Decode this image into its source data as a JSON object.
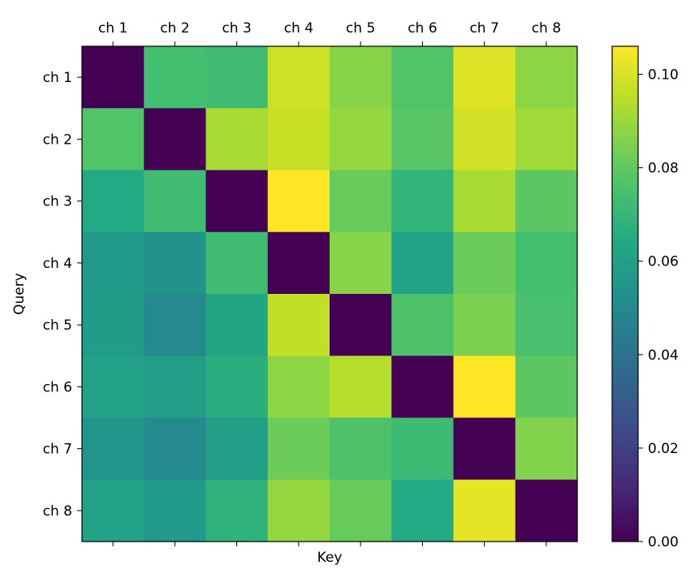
{
  "chart_data": {
    "type": "heatmap",
    "title": "",
    "xlabel": "Key",
    "ylabel": "Query",
    "x_tick_labels": [
      "ch 1",
      "ch 2",
      "ch 3",
      "ch 4",
      "ch 5",
      "ch 6",
      "ch 7",
      "ch 8"
    ],
    "y_tick_labels": [
      "ch 1",
      "ch 2",
      "ch 3",
      "ch 4",
      "ch 5",
      "ch 6",
      "ch 7",
      "ch 8"
    ],
    "colormap": "viridis",
    "vmin": 0.0,
    "vmax": 0.106,
    "colorbar_ticks": [
      0.0,
      0.02,
      0.04,
      0.06,
      0.08,
      0.1
    ],
    "colorbar_tick_labels": [
      "0.00",
      "0.02",
      "0.04",
      "0.06",
      "0.08",
      "0.10"
    ],
    "values": [
      [
        0.0,
        0.074,
        0.073,
        0.098,
        0.087,
        0.077,
        0.101,
        0.088
      ],
      [
        0.077,
        0.0,
        0.092,
        0.097,
        0.089,
        0.078,
        0.099,
        0.091
      ],
      [
        0.064,
        0.073,
        0.0,
        0.106,
        0.081,
        0.069,
        0.092,
        0.079
      ],
      [
        0.057,
        0.054,
        0.073,
        0.0,
        0.087,
        0.061,
        0.082,
        0.074
      ],
      [
        0.058,
        0.05,
        0.062,
        0.096,
        0.0,
        0.076,
        0.085,
        0.075
      ],
      [
        0.061,
        0.059,
        0.066,
        0.088,
        0.094,
        0.0,
        0.106,
        0.079
      ],
      [
        0.055,
        0.05,
        0.06,
        0.082,
        0.076,
        0.072,
        0.0,
        0.086
      ],
      [
        0.061,
        0.057,
        0.068,
        0.089,
        0.081,
        0.064,
        0.102,
        0.0
      ]
    ]
  }
}
